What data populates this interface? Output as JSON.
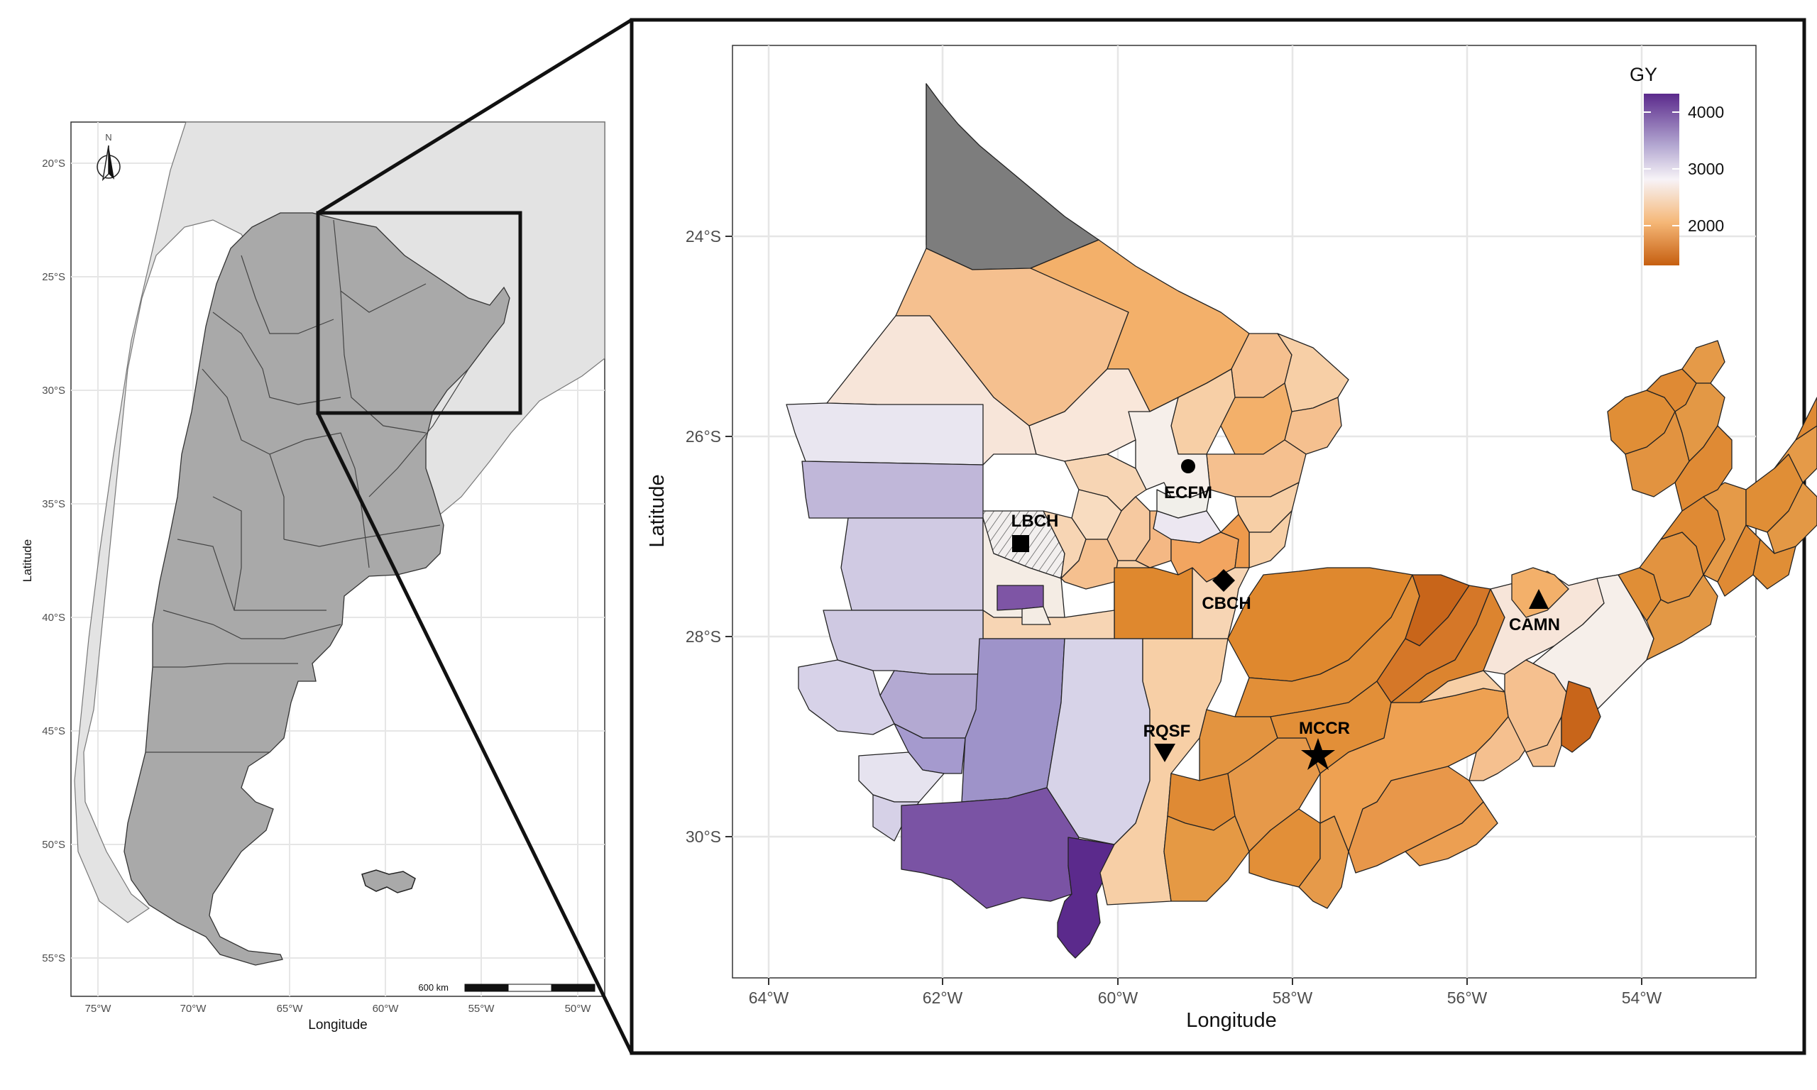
{
  "overview_map": {
    "north_label": "N",
    "scale_label": "600 km",
    "x_axis_title": "Longitude",
    "y_axis_title": "Latitude",
    "lon_ticks": [
      "75°W",
      "70°W",
      "65°W",
      "60°W",
      "55°W",
      "50°W"
    ],
    "lat_ticks": [
      "20°S",
      "25°S",
      "30°S",
      "35°S",
      "40°S",
      "45°S",
      "50°S",
      "55°S"
    ]
  },
  "detail_map": {
    "x_axis_title": "Longitude",
    "y_axis_title": "Latitude",
    "lon_ticks": [
      "64°W",
      "62°W",
      "60°W",
      "58°W",
      "56°W",
      "54°W"
    ],
    "lat_ticks": [
      "24°S",
      "26°S",
      "28°S",
      "30°S"
    ],
    "legend": {
      "title": "GY",
      "labels": [
        "4000",
        "3000",
        "2000"
      ],
      "colors": [
        "#5b2a8c",
        "#f7f3f7",
        "#c65f10"
      ]
    },
    "sites": [
      {
        "label": "ECFM",
        "marker": "circle"
      },
      {
        "label": "LBCH",
        "marker": "square"
      },
      {
        "label": "CBCH",
        "marker": "diamond"
      },
      {
        "label": "CAMN",
        "marker": "triangle-up"
      },
      {
        "label": "RQSF",
        "marker": "triangle-down"
      },
      {
        "label": "MCCR",
        "marker": "star"
      }
    ]
  },
  "colors": {
    "panel_border": "#111111",
    "grid": "#e6e6e6",
    "argentina_fill": "#a9a9a9",
    "neighbor_fill": "#e3e3e3",
    "missing_fill": "#7d7d7d"
  }
}
